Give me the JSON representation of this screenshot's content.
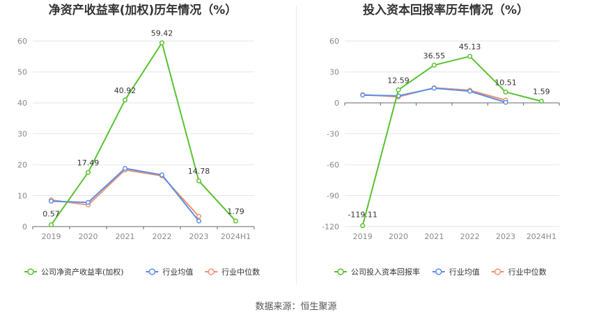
{
  "chart_data": [
    {
      "type": "line",
      "title": "净资产收益率(加权)历年情况（%）",
      "categories": [
        "2019",
        "2020",
        "2021",
        "2022",
        "2023",
        "2024H1"
      ],
      "y_ticks": [
        0,
        10,
        20,
        30,
        40,
        50,
        60
      ],
      "ylim": [
        0,
        60
      ],
      "grid": true,
      "legend_position": "bottom-left",
      "series": [
        {
          "name": "公司净资产收益率(加权)",
          "color": "#58c22e",
          "values": [
            0.57,
            17.49,
            40.92,
            59.42,
            14.78,
            1.79
          ],
          "labels": [
            "0.57",
            "17.49",
            "40.92",
            "59.42",
            "14.78",
            "1.79"
          ]
        },
        {
          "name": "行业均值",
          "color": "#5b8ee6",
          "values": [
            8.2,
            7.8,
            18.8,
            16.7,
            1.8,
            null
          ]
        },
        {
          "name": "行业中位数",
          "color": "#f0926e",
          "values": [
            8.6,
            7.0,
            18.3,
            16.4,
            3.3,
            null
          ]
        }
      ]
    },
    {
      "type": "line",
      "title": "投入资本回报率历年情况（%）",
      "categories": [
        "2019",
        "2020",
        "2021",
        "2022",
        "2023",
        "2024H1"
      ],
      "y_ticks": [
        -120,
        -90,
        -60,
        -30,
        0,
        30,
        60
      ],
      "ylim": [
        -120,
        60
      ],
      "grid": true,
      "legend_position": "bottom-left",
      "series": [
        {
          "name": "公司投入资本回报率",
          "color": "#58c22e",
          "values": [
            -119.11,
            12.59,
            36.55,
            45.13,
            10.51,
            1.59
          ],
          "labels": [
            "-119.11",
            "12.59",
            "36.55",
            "45.13",
            "10.51",
            "1.59"
          ]
        },
        {
          "name": "行业均值",
          "color": "#5b8ee6",
          "values": [
            7.5,
            6.8,
            14.2,
            11.3,
            0.5,
            null
          ]
        },
        {
          "name": "行业中位数",
          "color": "#f0926e",
          "values": [
            8.0,
            5.8,
            14.6,
            12.2,
            2.6,
            null
          ]
        }
      ]
    }
  ],
  "footer": {
    "source": "数据来源：恒生聚源"
  }
}
